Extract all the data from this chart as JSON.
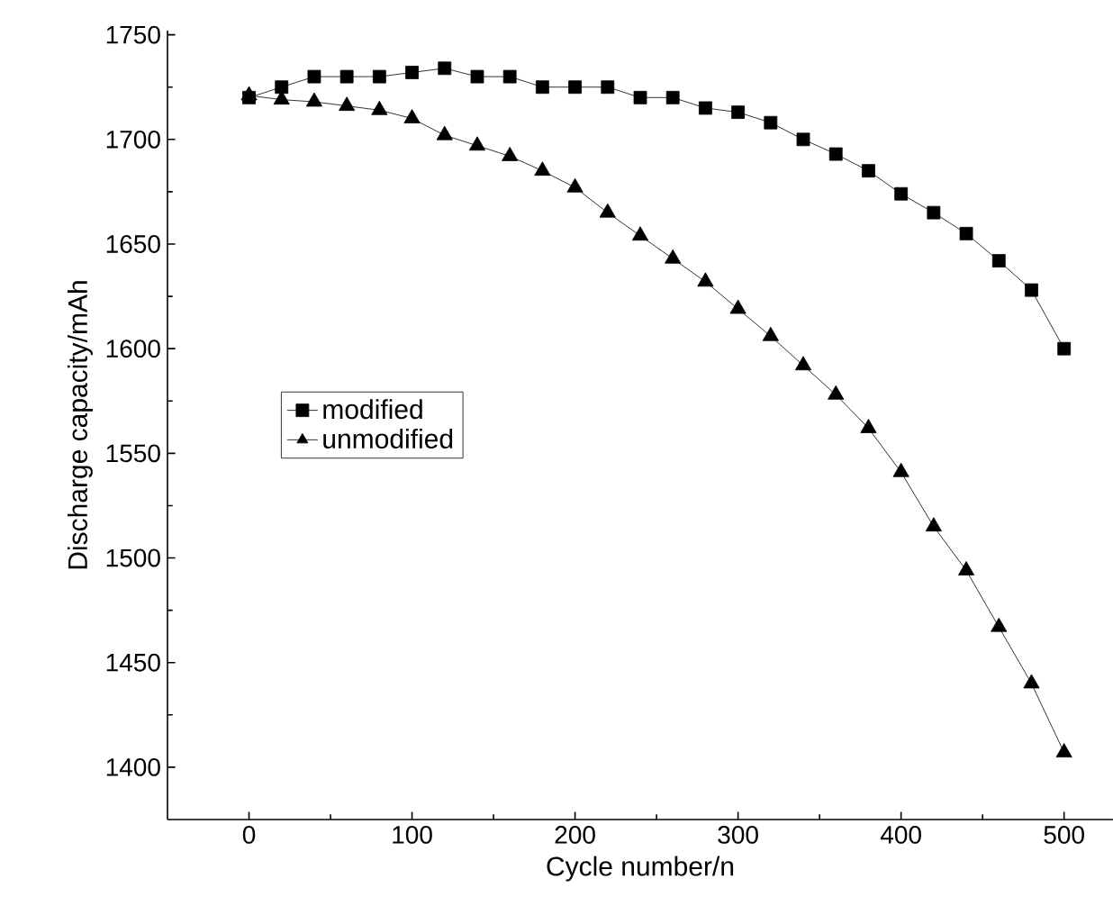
{
  "chart_data": {
    "type": "line",
    "xlabel": "Cycle number/n",
    "ylabel": "Discharge capacity/mAh",
    "x": [
      0,
      20,
      40,
      60,
      80,
      100,
      120,
      140,
      160,
      180,
      200,
      220,
      240,
      260,
      280,
      300,
      320,
      340,
      360,
      380,
      400,
      420,
      440,
      460,
      480,
      500
    ],
    "series": [
      {
        "name": "modified",
        "color": "#000000",
        "marker": "square",
        "values": [
          1720,
          1725,
          1730,
          1730,
          1730,
          1732,
          1734,
          1730,
          1730,
          1725,
          1725,
          1725,
          1720,
          1720,
          1715,
          1713,
          1708,
          1700,
          1693,
          1685,
          1674,
          1665,
          1655,
          1642,
          1628,
          1600
        ]
      },
      {
        "name": "unmodified",
        "color": "#000000",
        "marker": "triangle",
        "values": [
          1721,
          1719,
          1718,
          1716,
          1714,
          1710,
          1702,
          1697,
          1692,
          1685,
          1677,
          1665,
          1654,
          1643,
          1632,
          1619,
          1606,
          1592,
          1578,
          1562,
          1541,
          1515,
          1494,
          1467,
          1440,
          1407
        ]
      }
    ],
    "xlim": [
      -50,
      530
    ],
    "ylim": [
      1375,
      1752
    ],
    "xticks": [
      0,
      100,
      200,
      300,
      400,
      500
    ],
    "yticks": [
      1400,
      1450,
      1500,
      1550,
      1600,
      1650,
      1700,
      1750
    ],
    "grid": false,
    "legend": "left",
    "line_style": "solid"
  }
}
